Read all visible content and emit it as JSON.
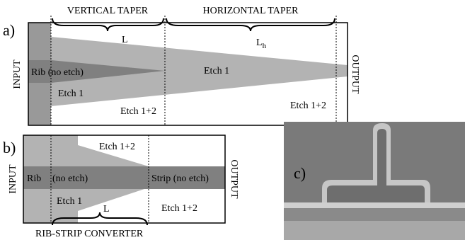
{
  "panel_a": {
    "label": "a)",
    "vertical_taper": "VERTICAL TAPER",
    "horizontal_taper": "HORIZONTAL TAPER",
    "length_vertical": "L",
    "length_horizontal": "L",
    "length_horizontal_sub": "h",
    "input": "INPUT",
    "output": "OUTPUT",
    "rib": "Rib (no etch)",
    "etch1_center": "Etch 1",
    "etch1_lower": "Etch 1",
    "etch12_left": "Etch 1+2",
    "etch12_right": "Etch 1+2"
  },
  "panel_b": {
    "label": "b)",
    "etch12_top": "Etch 1+2",
    "input": "INPUT",
    "output": "OUTPUT",
    "rib": "Rib",
    "no_etch": "(no etch)",
    "strip": "Strip (no etch)",
    "etch1": "Etch 1",
    "length": "L",
    "etch12_bottom": "Etch 1+2",
    "converter": "RIB-STRIP CONVERTER"
  },
  "panel_c": {
    "label": "c)"
  }
}
